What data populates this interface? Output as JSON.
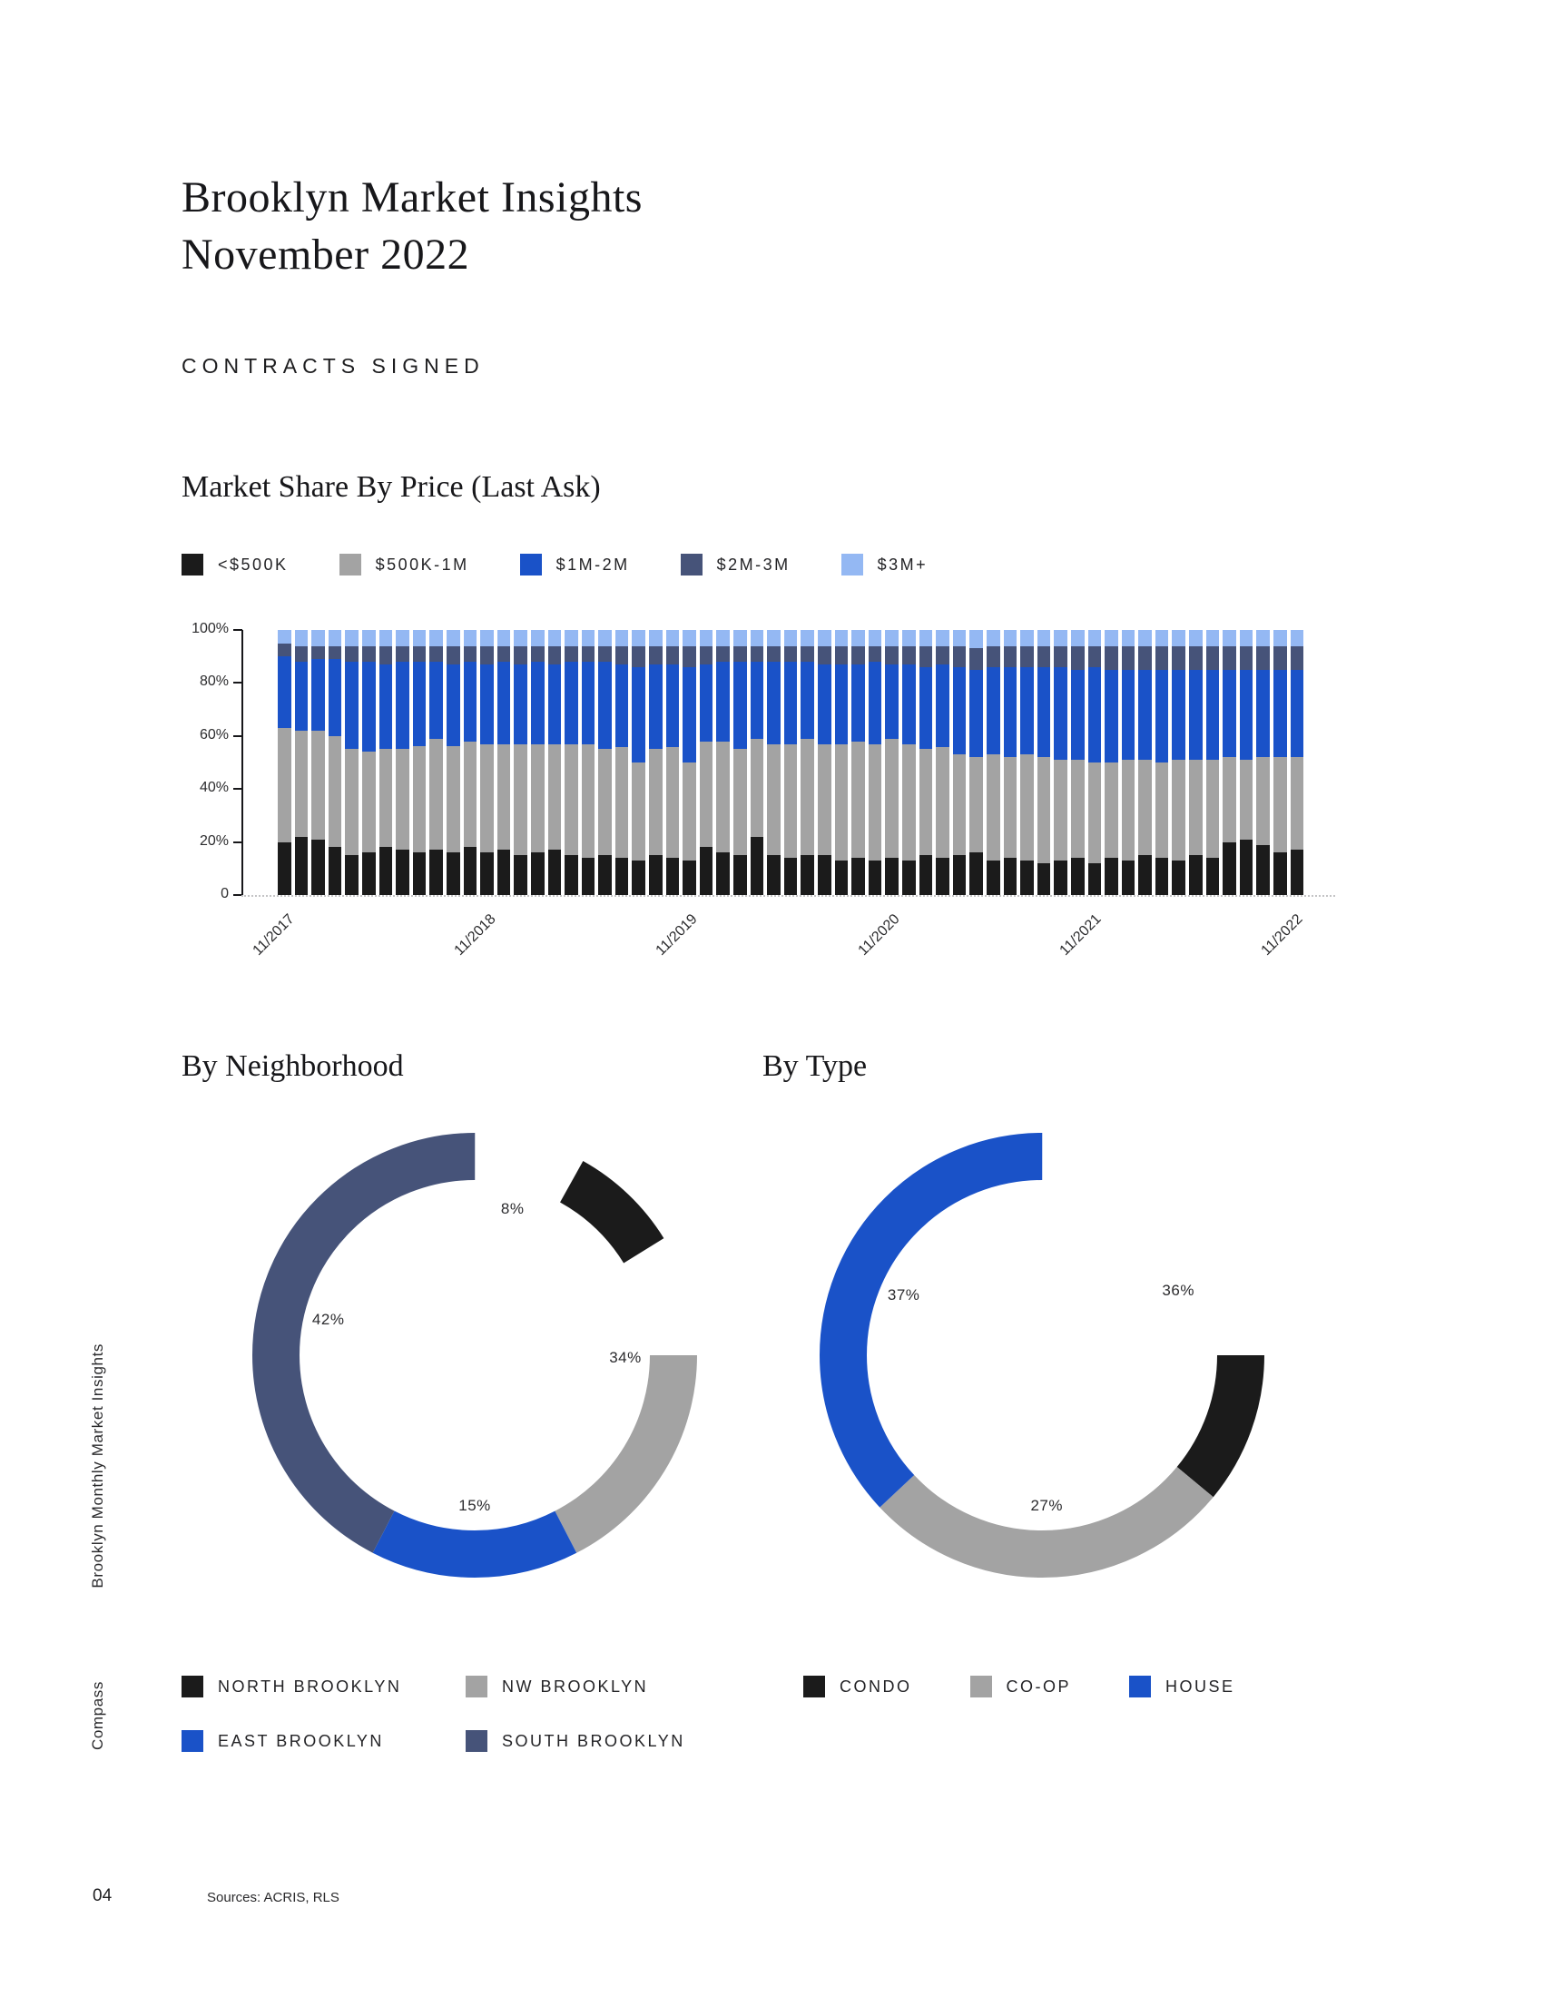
{
  "page": {
    "title_line1": "Brooklyn Market Insights",
    "title_line2": "November 2022",
    "section_label": "CONTRACTS SIGNED",
    "sidebar_text": "Brooklyn Monthly Market Insights",
    "sidebar_brand": "Compass",
    "page_number": "04",
    "sources": "Sources: ACRIS, RLS"
  },
  "colors": {
    "black": "#1b1b1b",
    "gray": "#a3a3a3",
    "blue": "#1a52c8",
    "navy": "#465379",
    "light_blue": "#94b8f3"
  },
  "chart_data": [
    {
      "type": "bar",
      "stacked": true,
      "percent": true,
      "title": "Market Share By Price (Last Ask)",
      "xlabel": "",
      "ylabel": "",
      "ylim": [
        0,
        100
      ],
      "grid": false,
      "legend_position": "top",
      "yticks": [
        "0",
        "20%",
        "40%",
        "60%",
        "80%",
        "100%"
      ],
      "visible_xticks": [
        "11/2017",
        "11/2018",
        "11/2019",
        "11/2020",
        "11/2021",
        "11/2022"
      ],
      "categories": [
        "11/2017",
        "12/2017",
        "1/2018",
        "2/2018",
        "3/2018",
        "4/2018",
        "5/2018",
        "6/2018",
        "7/2018",
        "8/2018",
        "9/2018",
        "10/2018",
        "11/2018",
        "12/2018",
        "1/2019",
        "2/2019",
        "3/2019",
        "4/2019",
        "5/2019",
        "6/2019",
        "7/2019",
        "8/2019",
        "9/2019",
        "10/2019",
        "11/2019",
        "12/2019",
        "1/2020",
        "2/2020",
        "3/2020",
        "4/2020",
        "5/2020",
        "6/2020",
        "7/2020",
        "8/2020",
        "9/2020",
        "10/2020",
        "11/2020",
        "12/2020",
        "1/2021",
        "2/2021",
        "3/2021",
        "4/2021",
        "5/2021",
        "6/2021",
        "7/2021",
        "8/2021",
        "9/2021",
        "10/2021",
        "11/2021",
        "12/2021",
        "1/2022",
        "2/2022",
        "3/2022",
        "4/2022",
        "5/2022",
        "6/2022",
        "7/2022",
        "8/2022",
        "9/2022",
        "10/2022",
        "11/2022"
      ],
      "series": [
        {
          "name": "<$500K",
          "color": "#1b1b1b",
          "values": [
            20,
            22,
            21,
            18,
            15,
            16,
            18,
            17,
            16,
            17,
            16,
            18,
            16,
            17,
            15,
            16,
            17,
            15,
            14,
            15,
            14,
            13,
            15,
            14,
            13,
            18,
            16,
            15,
            22,
            15,
            14,
            15,
            15,
            13,
            14,
            13,
            14,
            13,
            15,
            14,
            15,
            16,
            13,
            14,
            13,
            12,
            13,
            14,
            12,
            14,
            13,
            15,
            14,
            13,
            15,
            14,
            20,
            21,
            19,
            16,
            17
          ]
        },
        {
          "name": "$500K-1M",
          "color": "#a3a3a3",
          "values": [
            43,
            40,
            41,
            42,
            40,
            38,
            37,
            38,
            40,
            42,
            40,
            40,
            41,
            40,
            42,
            41,
            40,
            42,
            43,
            40,
            42,
            37,
            40,
            42,
            37,
            40,
            42,
            40,
            37,
            42,
            43,
            44,
            42,
            44,
            44,
            44,
            45,
            44,
            40,
            42,
            38,
            36,
            40,
            38,
            40,
            40,
            38,
            37,
            38,
            36,
            38,
            36,
            36,
            38,
            36,
            37,
            32,
            30,
            33,
            36,
            35
          ]
        },
        {
          "name": "$1M-2M",
          "color": "#1a52c8",
          "values": [
            27,
            26,
            27,
            29,
            33,
            34,
            32,
            33,
            32,
            29,
            31,
            30,
            30,
            31,
            30,
            31,
            30,
            31,
            31,
            33,
            31,
            36,
            32,
            31,
            36,
            29,
            30,
            33,
            29,
            31,
            31,
            29,
            30,
            30,
            29,
            31,
            28,
            30,
            31,
            31,
            33,
            33,
            33,
            34,
            33,
            34,
            35,
            34,
            36,
            35,
            34,
            34,
            35,
            34,
            34,
            34,
            33,
            34,
            33,
            33,
            33
          ]
        },
        {
          "name": "$2M-3M",
          "color": "#465379",
          "values": [
            5,
            6,
            5,
            5,
            6,
            6,
            7,
            6,
            6,
            6,
            7,
            6,
            7,
            6,
            7,
            6,
            7,
            6,
            6,
            6,
            7,
            8,
            7,
            7,
            8,
            7,
            6,
            6,
            6,
            6,
            6,
            6,
            7,
            7,
            7,
            6,
            7,
            7,
            8,
            7,
            8,
            8,
            8,
            8,
            8,
            8,
            8,
            9,
            8,
            9,
            9,
            9,
            9,
            9,
            9,
            9,
            9,
            9,
            9,
            9,
            9
          ]
        },
        {
          "name": "$3M+",
          "color": "#94b8f3",
          "values": [
            5,
            6,
            6,
            6,
            6,
            6,
            6,
            6,
            6,
            6,
            6,
            6,
            6,
            6,
            6,
            6,
            6,
            6,
            6,
            6,
            6,
            6,
            6,
            6,
            6,
            6,
            6,
            6,
            6,
            6,
            6,
            6,
            6,
            6,
            6,
            6,
            6,
            6,
            6,
            6,
            6,
            7,
            6,
            6,
            6,
            6,
            6,
            6,
            6,
            6,
            6,
            6,
            6,
            6,
            6,
            6,
            6,
            6,
            6,
            6,
            6
          ]
        }
      ]
    },
    {
      "type": "pie",
      "subtype": "donut",
      "title": "By Neighborhood",
      "labels": [
        "NORTH BROOKLYN",
        "NW BROOKLYN",
        "EAST BROOKLYN",
        "SOUTH BROOKLYN"
      ],
      "values": [
        8,
        34,
        15,
        42
      ],
      "value_labels": [
        "8%",
        "34%",
        "15%",
        "42%"
      ],
      "colors": [
        "#1b1b1b",
        "#a3a3a3",
        "#1a52c8",
        "#465379"
      ],
      "legend_position": "bottom"
    },
    {
      "type": "pie",
      "subtype": "donut",
      "title": "By Type",
      "labels": [
        "CONDO",
        "CO-OP",
        "HOUSE"
      ],
      "values": [
        36,
        27,
        37
      ],
      "value_labels": [
        "36%",
        "27%",
        "37%"
      ],
      "colors": [
        "#1b1b1b",
        "#a3a3a3",
        "#1a52c8"
      ],
      "legend_position": "bottom"
    }
  ]
}
